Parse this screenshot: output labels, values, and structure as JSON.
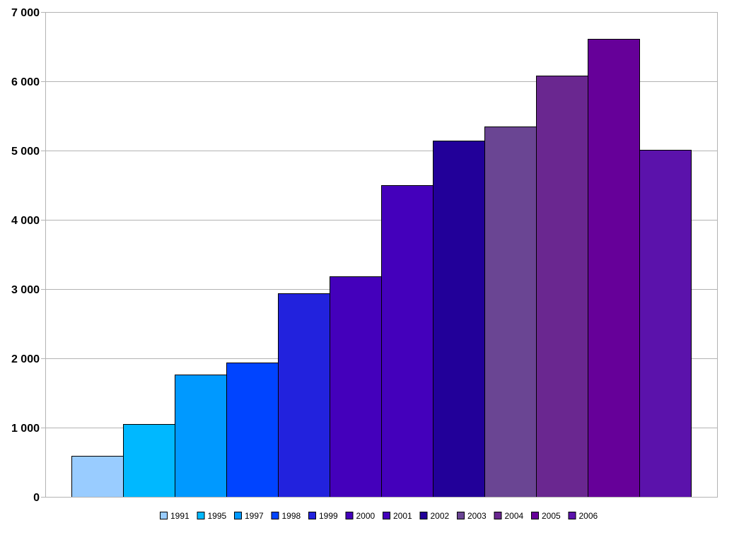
{
  "chart_data": {
    "type": "bar",
    "categories": [
      "1991",
      "1995",
      "1997",
      "1998",
      "1999",
      "2000",
      "2001",
      "2002",
      "2003",
      "2004",
      "2005",
      "2006"
    ],
    "values": [
      590,
      1055,
      1765,
      1935,
      2940,
      3185,
      4500,
      5145,
      5345,
      6080,
      6615,
      5010
    ],
    "colors": [
      "#99ccff",
      "#00b8ff",
      "#0099ff",
      "#0044ff",
      "#2222dd",
      "#4400bb",
      "#4400bb",
      "#220099",
      "#6a4593",
      "#6a2790",
      "#660099",
      "#5b12ab"
    ],
    "ylim": [
      0,
      7000
    ],
    "yticks": [
      0,
      1000,
      2000,
      3000,
      4000,
      5000,
      6000,
      7000
    ],
    "ytick_labels": [
      "0",
      "1 000",
      "2 000",
      "3 000",
      "4 000",
      "5 000",
      "6 000",
      "7 000"
    ],
    "grid": true,
    "legend": "bottom",
    "title": "",
    "xlabel": "",
    "ylabel": ""
  }
}
